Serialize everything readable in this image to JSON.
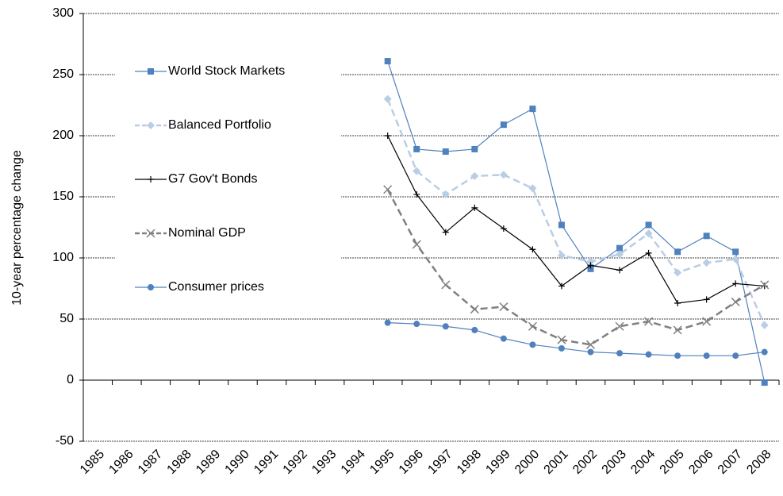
{
  "chart_data": {
    "type": "line",
    "y_label": "10-year percentage change",
    "categories": [
      "1985",
      "1986",
      "1987",
      "1988",
      "1989",
      "1990",
      "1991",
      "1992",
      "1993",
      "1994",
      "1995",
      "1996",
      "1997",
      "1998",
      "1999",
      "2000",
      "2001",
      "2002",
      "2003",
      "2004",
      "2005",
      "2006",
      "2007",
      "2008"
    ],
    "ylim": [
      -50,
      300
    ],
    "yticks": [
      -50,
      0,
      50,
      100,
      150,
      200,
      250,
      300
    ],
    "grid": true,
    "series": [
      {
        "name": "World Stock Markets",
        "color": "#4f81bd",
        "marker": "square",
        "dashed": false,
        "values": [
          null,
          null,
          null,
          null,
          null,
          null,
          null,
          null,
          null,
          null,
          261,
          189,
          187,
          189,
          209,
          222,
          127,
          91,
          108,
          127,
          105,
          118,
          105,
          -2
        ]
      },
      {
        "name": "Balanced Portfolio",
        "color": "#b9cde5",
        "marker": "diamond",
        "dashed": true,
        "values": [
          null,
          null,
          null,
          null,
          null,
          null,
          null,
          null,
          null,
          null,
          230,
          171,
          152,
          167,
          168,
          157,
          102,
          97,
          103,
          120,
          88,
          96,
          99,
          45
        ]
      },
      {
        "name": "G7 Gov't Bonds",
        "color": "#000000",
        "marker": "plus",
        "dashed": false,
        "values": [
          null,
          null,
          null,
          null,
          null,
          null,
          null,
          null,
          null,
          null,
          200,
          152,
          121,
          141,
          124,
          107,
          77,
          94,
          90,
          104,
          63,
          66,
          79,
          77
        ]
      },
      {
        "name": "Nominal GDP",
        "color": "#808080",
        "marker": "x",
        "dashed": true,
        "values": [
          null,
          null,
          null,
          null,
          null,
          null,
          null,
          null,
          null,
          null,
          156,
          111,
          78,
          58,
          60,
          44,
          33,
          29,
          44,
          48,
          41,
          48,
          64,
          78
        ]
      },
      {
        "name": "Consumer prices",
        "color": "#4f81bd",
        "marker": "circle",
        "dashed": false,
        "values": [
          null,
          null,
          null,
          null,
          null,
          null,
          null,
          null,
          null,
          null,
          47,
          46,
          44,
          41,
          34,
          29,
          26,
          23,
          22,
          21,
          20,
          20,
          20,
          23
        ]
      }
    ]
  }
}
